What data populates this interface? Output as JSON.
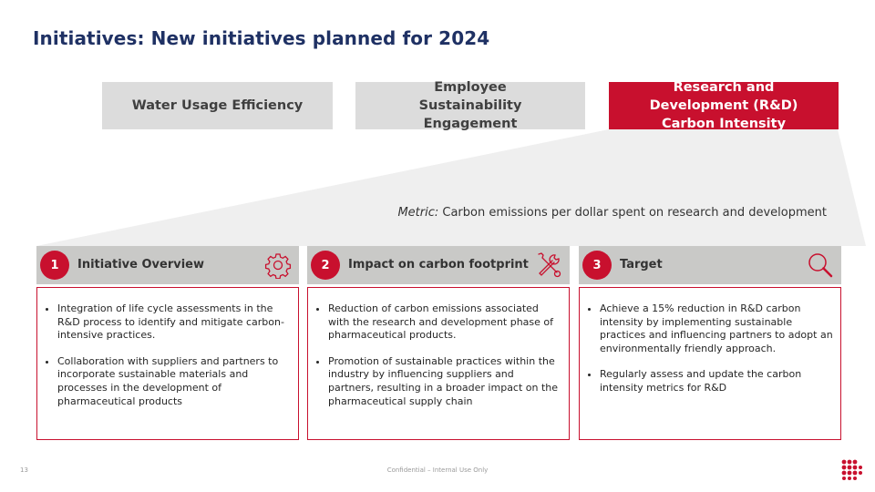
{
  "page": {
    "title": "Initiatives: New initiatives planned for 2024",
    "page_number": "13",
    "confidential": "Confidential – Internal Use Only"
  },
  "tabs": [
    {
      "label": "Water Usage Efficiency",
      "active": false
    },
    {
      "label": "Employee Sustainability Engagement",
      "active": false
    },
    {
      "label": "Research and Development (R&D) Carbon Intensity",
      "active": true
    }
  ],
  "metric": {
    "label": "Metric:",
    "text": " Carbon emissions per dollar spent on research and development"
  },
  "cards": [
    {
      "number": "1",
      "heading": "Initiative Overview",
      "icon": "gear-icon",
      "bullets": [
        "Integration of life cycle assessments in the R&D process to identify and mitigate carbon-intensive practices.",
        "Collaboration with suppliers and partners to incorporate sustainable materials and processes in the development of pharmaceutical products"
      ]
    },
    {
      "number": "2",
      "heading": "Impact on carbon footprint",
      "icon": "tools-icon",
      "bullets": [
        "Reduction of carbon emissions associated with the research and development phase of pharmaceutical products.",
        "Promotion of sustainable practices within the industry by influencing suppliers and partners, resulting in a broader impact on the pharmaceutical supply chain"
      ]
    },
    {
      "number": "3",
      "heading": "Target",
      "icon": "magnifier-icon",
      "bullets": [
        "Achieve a 15% reduction in R&D carbon intensity by implementing sustainable practices and influencing partners to adopt an environmentally friendly approach.",
        "Regularly assess and update the carbon intensity metrics for R&D"
      ]
    }
  ],
  "colors": {
    "accent": "#c8102e",
    "title": "#1f3164",
    "tab_inactive": "#dcdcdc",
    "card_header": "#c9c9c7",
    "funnel": "#efefef"
  }
}
